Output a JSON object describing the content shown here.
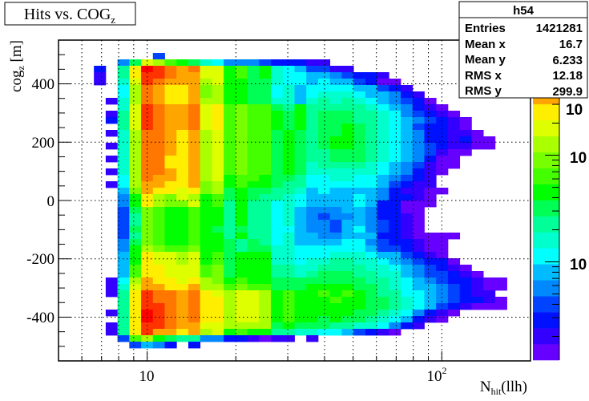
{
  "chart_data": {
    "type": "heatmap",
    "title": {
      "main": "Hits vs. COG",
      "sub": "z"
    },
    "xlabel": {
      "main": "N",
      "sub": "hit",
      "tail": "(llh)"
    },
    "ylabel": {
      "main": "cog",
      "sub": "z",
      "tail": " [m]"
    },
    "x_scale": "log",
    "xlim": [
      5,
      200
    ],
    "ylim": [
      -550,
      550
    ],
    "z_scale": "log",
    "zlim": [
      1.2,
      1200
    ],
    "x_bins": 40,
    "y_bins": 50,
    "grid": true,
    "x_tick_labels": [
      {
        "value": 10,
        "base": "10",
        "exp": ""
      },
      {
        "value": 100,
        "base": "10",
        "exp": "2"
      }
    ],
    "y_tick_labels": [
      {
        "value": 400,
        "label": "400"
      },
      {
        "value": 200,
        "label": "200"
      },
      {
        "value": 0,
        "label": "0"
      },
      {
        "value": -200,
        "label": "-200"
      },
      {
        "value": -400,
        "label": "-400"
      }
    ],
    "z_tick_labels": [
      {
        "value": 10,
        "label": "10"
      },
      {
        "value": 100,
        "label": "10"
      },
      {
        "value": 1000,
        "label": "10"
      }
    ],
    "palette": [
      "#6600ff",
      "#3300ff",
      "#0011ff",
      "#0044ff",
      "#0088ff",
      "#00bbff",
      "#00ffff",
      "#00ffcc",
      "#00ff99",
      "#00ff55",
      "#00ff00",
      "#44ff00",
      "#77ff00",
      "#aaff00",
      "#ddff00",
      "#ffee00",
      "#ffa500",
      "#ff7700",
      "#ff3300",
      "#ff0000"
    ],
    "level_encoding": "0 = empty, 1-9 then a-k = palette level 1-20; rows from top (+550) to bottom (-550), columns from low to high x",
    "rows": [
      "0000000000000000000000000000000000000000",
      "0000000000000000000000000000000000000000",
      "0000000040000000000000000000000000000000",
      "000005afecba8755543332200000000000000000",
      "000309gkjihiffbcab8764422000000000000000",
      "000209gjjihhffbcab8776654332000000000000",
      "000208fjihhhefbbaa8776766431100000000000",
      "000007eihgghdebbaa7867777664320000000000",
      "000007eihgghdebbaa7867888766532000000000",
      "000028eihggheebbaa8868989876543100000000",
      "000008fjihhifgcdcca9b9999987653210000000",
      "000029fjihhifgcdccbab9aaa998754321000000",
      "000039fjihhifgcdccbab9aaa998765432100000",
      "000009fjihhifgcdccbab9aaba98764332100000",
      "000028eiihghefcdccaba9aaba98765332210000",
      "000008eiihghefcdccaba9abba98765332311000",
      "000028eiihghefcdccaba9abba98765432211000",
      "000008eiihghefcdccaba99aaa98765421100000",
      "000028eiigghefcdccaba99aaa98765311000000",
      "000008eiigghefcdccaba8999987654211000000",
      "000028eiihghefcdccaba8888887653210000000",
      "000007eihhghefbccbaa97788776543200000000",
      "000027ehhgghdebcbba997777776432200000000",
      "000006dhggfgdeabaa9986766665322110000000",
      "000005bgedfebcaba99876666765332100000000",
      "000005bgeddfbc9b997876666763311100000000",
      "000004adcbbcbb9b997865556653311000000000",
      "0000049dcbbcbb9b997865455653321000000000",
      "0000049dcbbcbb9b997865546654321000000000",
      "000004adcbbcba9a997765546754321000000000",
      "0000049dcbbcbb9b997866556663321111000000",
      "000005adcbbcbba9a97866667754332110000000",
      "000005bedccdbba9aa8877777764432110000000",
      "000006bgffefbcabbb8877788876643210000000",
      "000006bgffefbcabbb8878899887654331000000",
      "000006cggfffcdabbb9988999988765432100000",
      "000006cggfffcdabbb9989aaa998865443210000",
      "000027ehggfgedbcbbaaaaaaaa99876543321100",
      "000028fhhggheecdccaaabbbbaa9876654321100",
      "000029gjiihigfeffebcbbcbcba9977654322000",
      "000009gjiihiggeffebcbbbcbbaa987654332100",
      "000009gjjihiggeffebcbbbbbbaa987643211100",
      "000029gkjihiggeffebcbbbbbaa9875321000000",
      "000009gkjihiggeffebcbbabaa98763210000000",
      "000029gjjihhffeeeeabaaa99887532000000000",
      "000029gjhhghefbcbb9988776432100000000000",
      "000004ceba995533212202000000000000000000",
      "0000004653030000000000000000000000000000",
      "0000000000000000000000000000000000000000",
      "0000000000000000000000000000000000000000"
    ]
  },
  "stats": {
    "name": "h54",
    "rows": [
      {
        "label": "Entries",
        "value": "1421281"
      },
      {
        "label": "Mean x",
        "value": "16.7"
      },
      {
        "label": "Mean y",
        "value": "6.233"
      },
      {
        "label": "RMS x",
        "value": "12.18"
      },
      {
        "label": "RMS y",
        "value": "299.9"
      }
    ]
  }
}
